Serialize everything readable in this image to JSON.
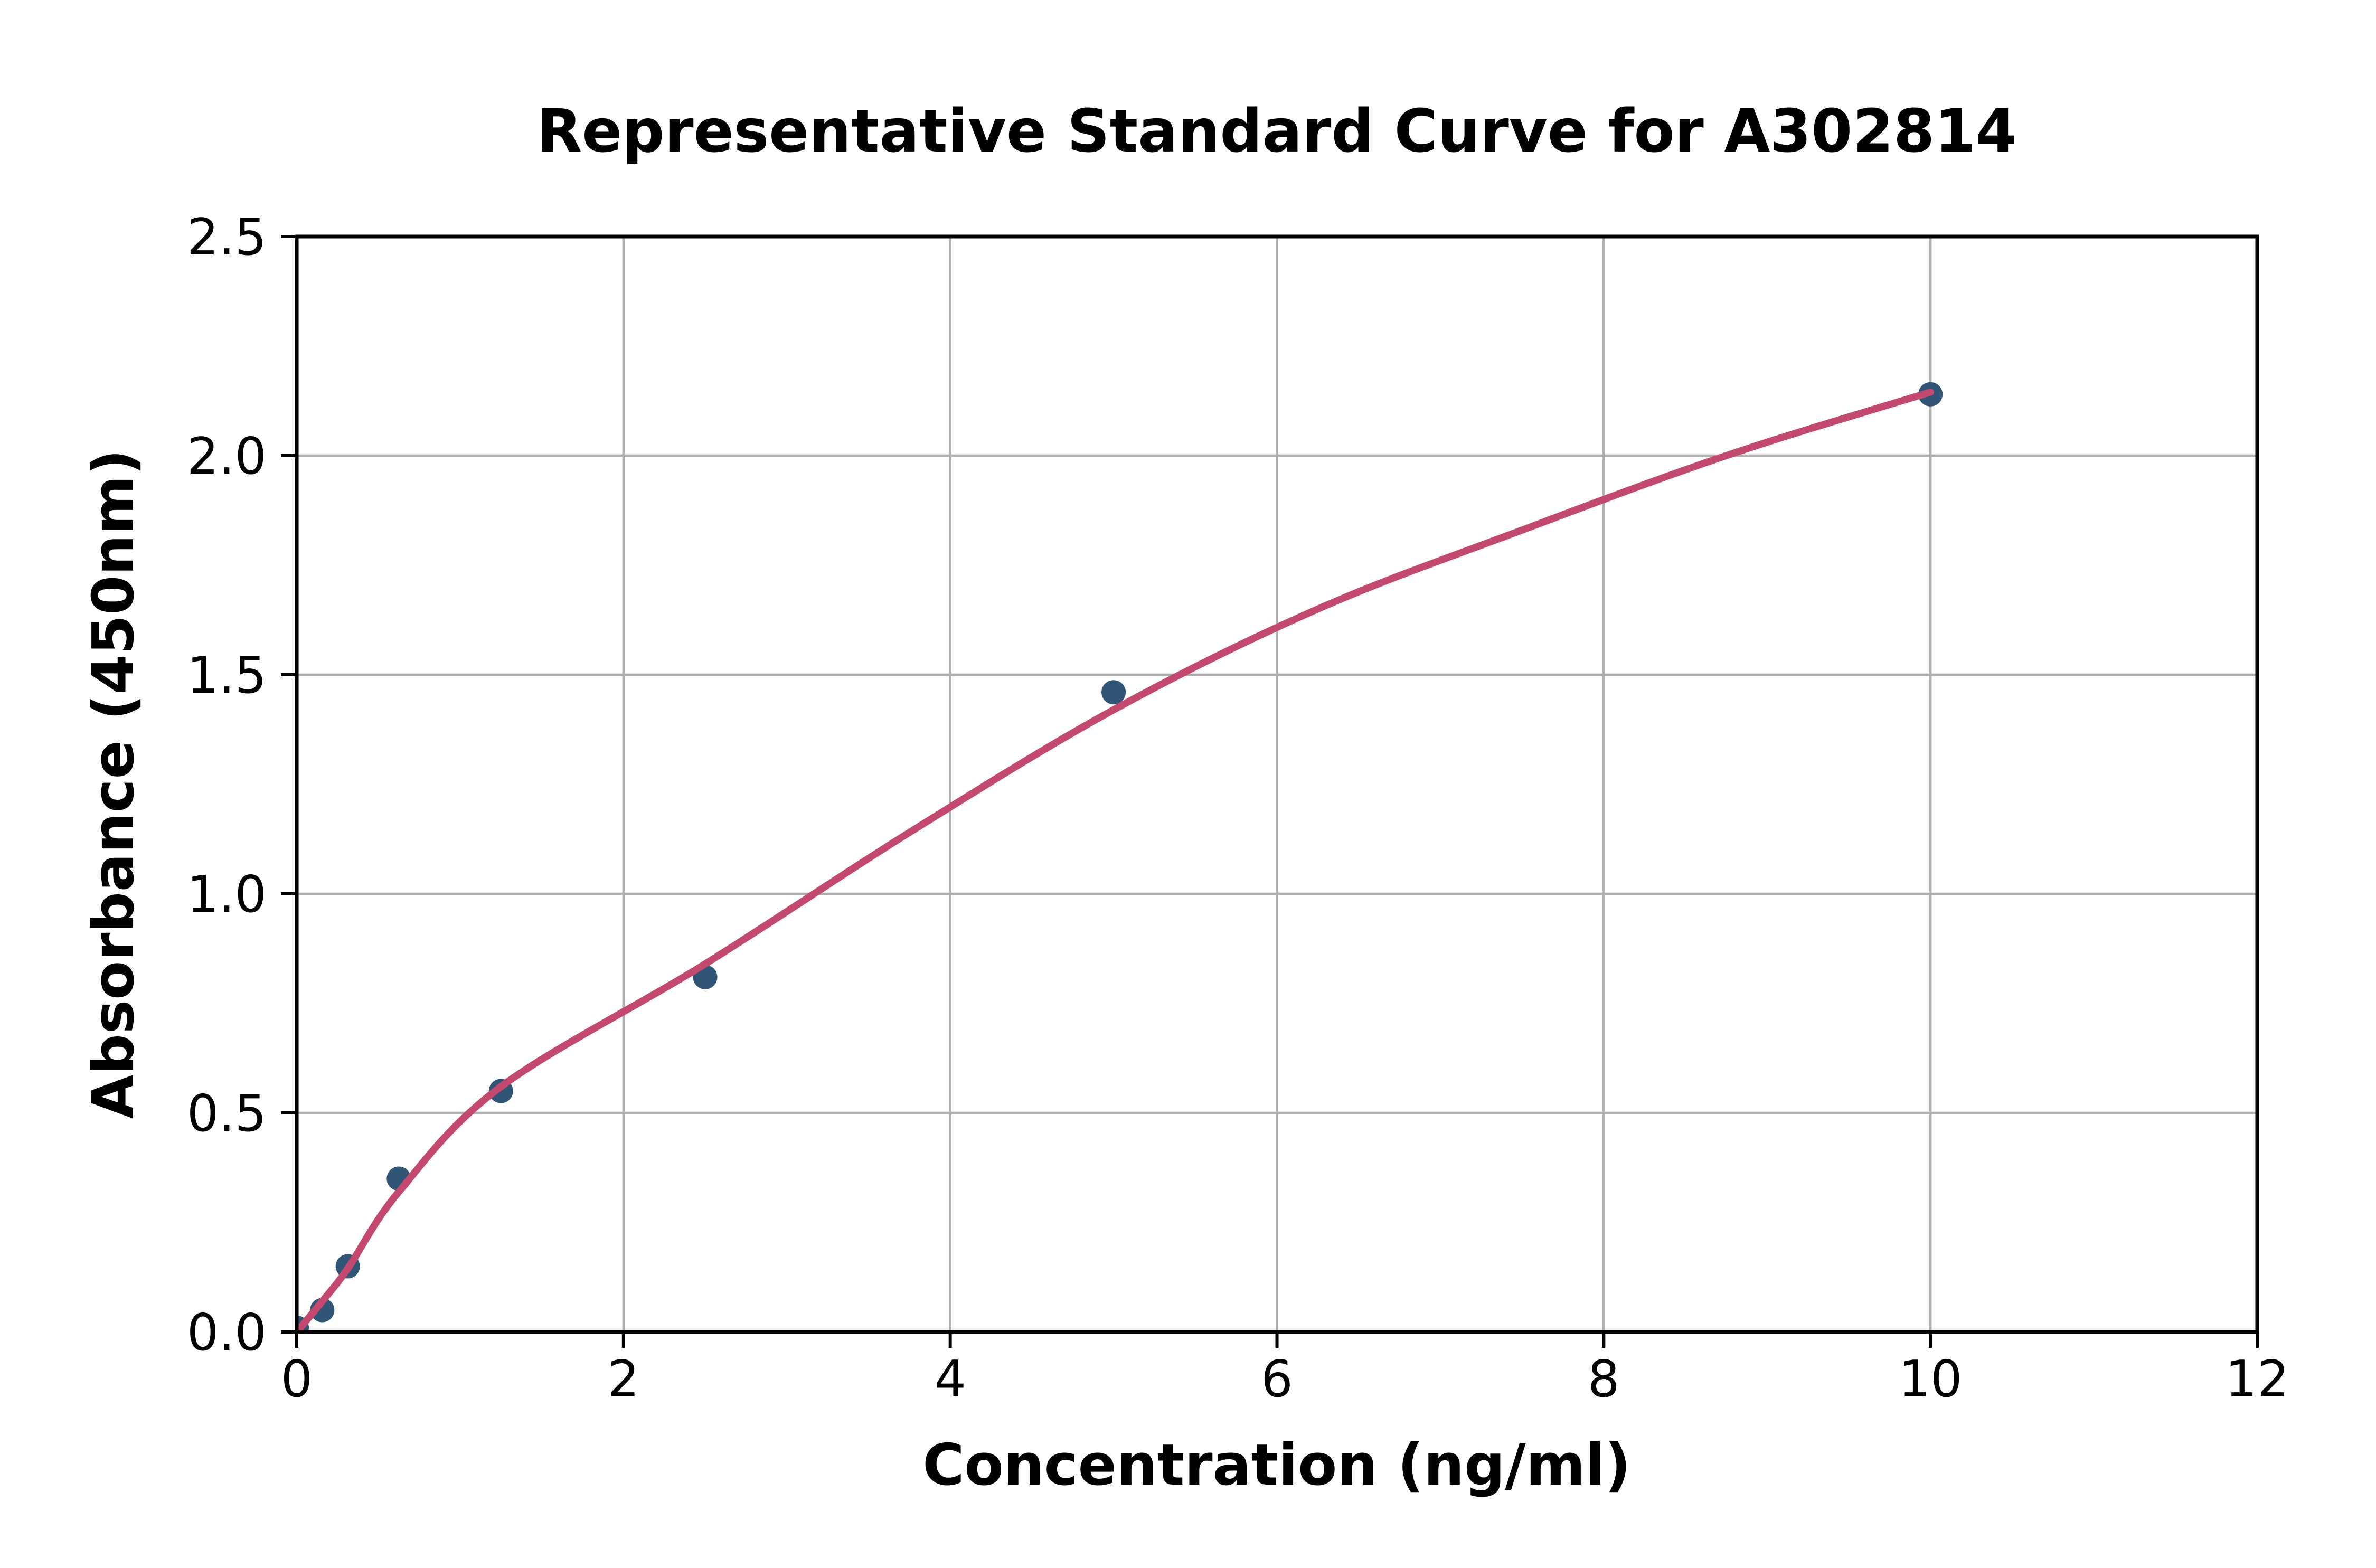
{
  "chart_data": {
    "type": "scatter",
    "title": "Representative Standard Curve for A302814",
    "xlabel": "Concentration (ng/ml)",
    "ylabel": "Absorbance (450nm)",
    "xlim": [
      0,
      12
    ],
    "ylim": [
      0,
      2.5
    ],
    "grid": true,
    "legend": "none",
    "x_ticks": {
      "values": [
        0,
        2,
        4,
        6,
        8,
        10,
        12
      ],
      "labels": [
        "0",
        "2",
        "4",
        "6",
        "8",
        "10",
        "12"
      ]
    },
    "y_ticks": {
      "values": [
        0,
        0.5,
        1.0,
        1.5,
        2.0,
        2.5
      ],
      "labels": [
        "0.0",
        "0.5",
        "1.0",
        "1.5",
        "2.0",
        "2.5"
      ]
    },
    "series": [
      {
        "name": "standard-points",
        "type": "scatter",
        "x": [
          0,
          0.156,
          0.3125,
          0.625,
          1.25,
          2.5,
          5,
          10
        ],
        "y": [
          0.01,
          0.05,
          0.15,
          0.35,
          0.55,
          0.81,
          1.46,
          2.14
        ]
      },
      {
        "name": "fitted-curve",
        "type": "line",
        "x": [
          0,
          0.156,
          0.3125,
          0.625,
          1.25,
          2.5,
          3.75,
          5,
          6.25,
          7.5,
          8.75,
          10
        ],
        "y": [
          0,
          0.07,
          0.145,
          0.32,
          0.56,
          0.84,
          1.14,
          1.42,
          1.65,
          1.83,
          2.0,
          2.145
        ]
      }
    ],
    "colors": {
      "point": "#315576",
      "curve": "#c4496e",
      "grid": "#b0b0b0",
      "axes": "#000000",
      "background": "#ffffff",
      "text": "#000000"
    }
  }
}
